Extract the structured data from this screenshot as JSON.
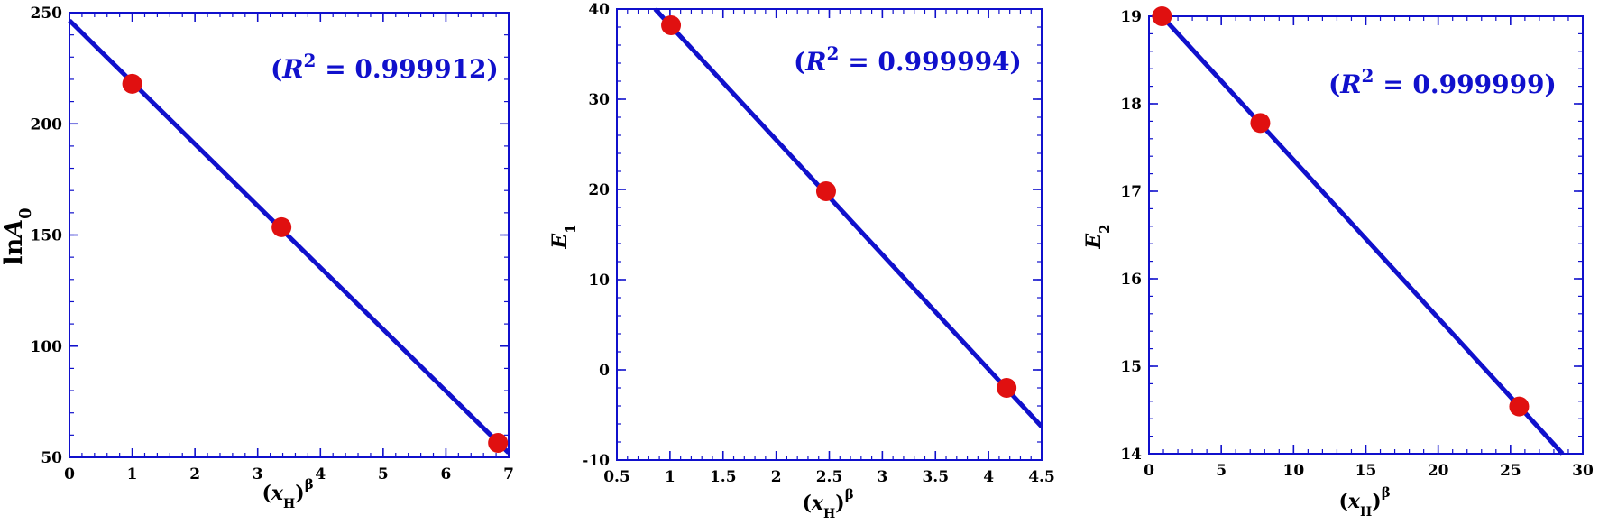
{
  "chart_data": [
    {
      "type": "scatter",
      "ylabel_text": "lnA",
      "ylabel_sub": "0",
      "xlabel_text": "(x",
      "xlabel_sub": "H",
      "xlabel_close": ")",
      "xlabel_sup": "β",
      "annotation_prefix": "(R",
      "annotation_sup": "2",
      "annotation_suffix": " = 0.999912)",
      "xlim": [
        0,
        7
      ],
      "ylim": [
        50,
        250
      ],
      "xticks": [
        0,
        1,
        2,
        3,
        4,
        5,
        6,
        7
      ],
      "xtick_labels": [
        "0",
        "1",
        "2",
        "3",
        "4",
        "5",
        "6",
        "7"
      ],
      "yticks": [
        50,
        100,
        150,
        200,
        250
      ],
      "ytick_labels": [
        "50",
        "100",
        "150",
        "200",
        "250"
      ],
      "x_minor_step": 0.2,
      "y_minor_step": 10,
      "points": [
        {
          "x": 1.0,
          "y": 218.0
        },
        {
          "x": 3.38,
          "y": 153.5
        },
        {
          "x": 6.83,
          "y": 56.5
        }
      ],
      "fit_line": {
        "x": [
          0,
          7
        ],
        "y": [
          246.5,
          52.0
        ]
      },
      "point_color": "#e01010",
      "line_color": "#1010cc"
    },
    {
      "type": "scatter",
      "ylabel_text": "E",
      "ylabel_sub": "1",
      "xlabel_text": "(x",
      "xlabel_sub": "H",
      "xlabel_close": ")",
      "xlabel_sup": "β",
      "annotation_prefix": "(R",
      "annotation_sup": "2",
      "annotation_suffix": " = 0.999994)",
      "xlim": [
        0.5,
        4.5
      ],
      "ylim": [
        -10,
        40
      ],
      "xticks": [
        0.5,
        1,
        1.5,
        2,
        2.5,
        3,
        3.5,
        4,
        4.5
      ],
      "xtick_labels": [
        "0.5",
        "1",
        "1.5",
        "2",
        "2.5",
        "3",
        "3.5",
        "4",
        "4.5"
      ],
      "yticks": [
        -10,
        0,
        10,
        20,
        30,
        40
      ],
      "ytick_labels": [
        "-10",
        "0",
        "10",
        "20",
        "30",
        "40"
      ],
      "x_minor_step": 0.1,
      "y_minor_step": 2,
      "points": [
        {
          "x": 1.01,
          "y": 38.2
        },
        {
          "x": 2.47,
          "y": 19.8
        },
        {
          "x": 4.17,
          "y": -2.0
        }
      ],
      "fit_line": {
        "x": [
          0.86,
          4.5
        ],
        "y": [
          40.0,
          -6.3
        ]
      },
      "point_color": "#e01010",
      "line_color": "#1010cc"
    },
    {
      "type": "scatter",
      "ylabel_text": "E",
      "ylabel_sub": "2",
      "xlabel_text": "(x",
      "xlabel_sub": "H",
      "xlabel_close": ")",
      "xlabel_sup": "β",
      "annotation_prefix": "(R",
      "annotation_sup": "2",
      "annotation_suffix": " = 0.999999)",
      "xlim": [
        0,
        30
      ],
      "ylim": [
        14,
        19
      ],
      "xticks": [
        0,
        5,
        10,
        15,
        20,
        25,
        30
      ],
      "xtick_labels": [
        "0",
        "5",
        "10",
        "15",
        "20",
        "25",
        "30"
      ],
      "yticks": [
        14,
        15,
        16,
        17,
        18,
        19
      ],
      "ytick_labels": [
        "14",
        "15",
        "16",
        "17",
        "18",
        "19"
      ],
      "x_minor_step": 1,
      "y_minor_step": 0.2,
      "points": [
        {
          "x": 0.9,
          "y": 19.0
        },
        {
          "x": 7.7,
          "y": 17.78
        },
        {
          "x": 25.6,
          "y": 14.54
        }
      ],
      "fit_line": {
        "x": [
          0.9,
          28.6
        ],
        "y": [
          19.0,
          14.0
        ]
      },
      "point_color": "#e01010",
      "line_color": "#1010cc"
    }
  ]
}
